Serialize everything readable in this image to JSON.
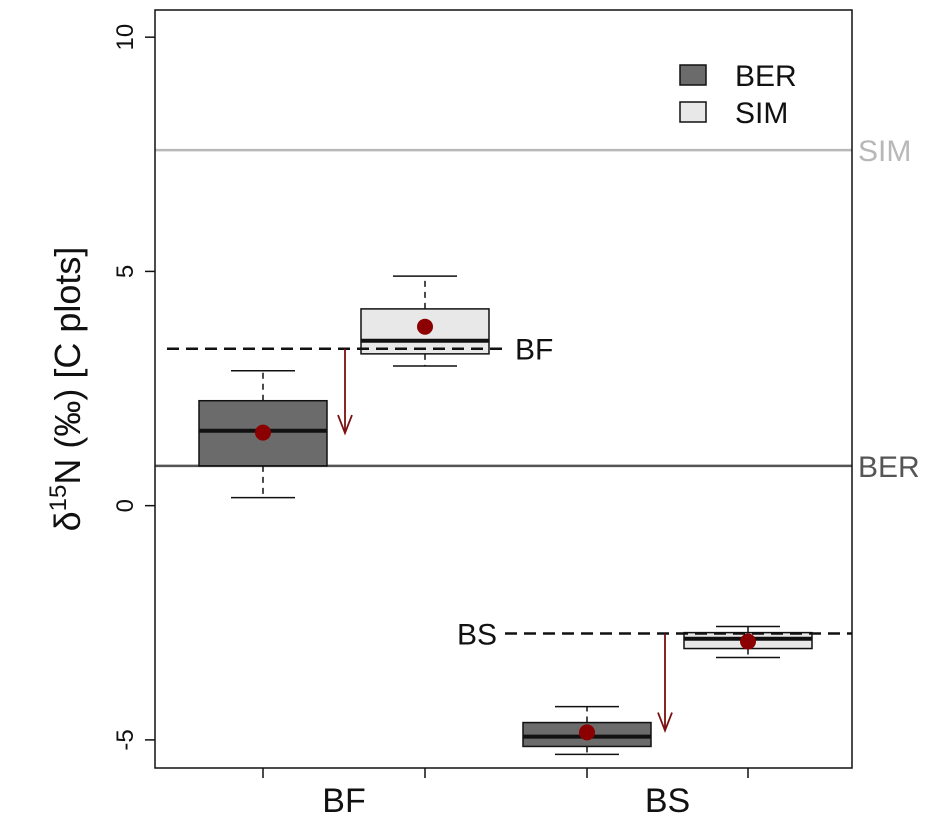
{
  "chart_data": {
    "type": "box",
    "y_label": {
      "prefix": "δ",
      "sup": "15",
      "main": "N (‰) [C plots]"
    },
    "categories": [
      "BF",
      "BS"
    ],
    "series": [
      {
        "name": "BER",
        "color": "#6b6b6b",
        "boxes": [
          {
            "whisker_low": 0.17,
            "q1": 0.85,
            "median": 1.6,
            "q3": 2.24,
            "whisker_high": 2.88,
            "mean": 1.56
          },
          {
            "whisker_low": -5.31,
            "q1": -5.14,
            "median": -4.93,
            "q3": -4.63,
            "whisker_high": -4.29,
            "mean": -4.84
          }
        ]
      },
      {
        "name": "SIM",
        "color": "#e8e8e8",
        "boxes": [
          {
            "whisker_low": 2.98,
            "q1": 3.24,
            "median": 3.52,
            "q3": 4.2,
            "whisker_high": 4.9,
            "mean": 3.82
          },
          {
            "whisker_low": -3.24,
            "q1": -3.05,
            "median": -2.84,
            "q3": -2.71,
            "whisker_high": -2.58,
            "mean": -2.9
          }
        ]
      }
    ],
    "mean_color": "#8b0000",
    "ylim": [
      -5.6,
      10.58
    ],
    "yticks": [
      -5,
      0,
      5,
      10
    ],
    "reference_lines": [
      {
        "label": "SIM",
        "value": 7.59,
        "color": "#b8b8b8"
      },
      {
        "label": "BER",
        "value": 0.85,
        "color": "#555555"
      }
    ],
    "comparison_lines": [
      {
        "label": "BF",
        "value": 3.35,
        "arrow_to": 1.55
      },
      {
        "label": "BS",
        "value": -2.73,
        "arrow_to": -4.8
      }
    ]
  }
}
